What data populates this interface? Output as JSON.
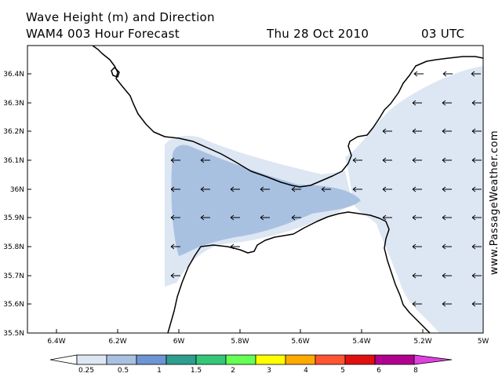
{
  "header": {
    "title": "Wave Height (m) and Direction",
    "model_line": "WAM4 003 Hour Forecast",
    "date": "Thu 28 Oct 2010",
    "time": "03 UTC"
  },
  "watermark": "www.PassageWeather.com",
  "map": {
    "x_ticks": [
      "6.4W",
      "6.2W",
      "6W",
      "5.8W",
      "5.6W",
      "5.4W",
      "5.2W",
      "5W"
    ],
    "y_ticks": [
      "36.4N",
      "36.3N",
      "36.2N",
      "36.1N",
      "36N",
      "35.9N",
      "35.8N",
      "35.7N",
      "35.6N",
      "35.5N"
    ],
    "shading_levels": [
      "0.25-0.5 m",
      "0.5-1 m"
    ],
    "arrow_direction": "west"
  },
  "legend": {
    "labels": [
      "0.25",
      "0.5",
      "1",
      "1.5",
      "2",
      "3",
      "4",
      "5",
      "6",
      "8"
    ],
    "colors": [
      "#ffffff",
      "#dde6f3",
      "#a9c1e1",
      "#6d95d3",
      "#2e9e8f",
      "#34c77a",
      "#66ff55",
      "#ffff00",
      "#ffaa00",
      "#ff5533",
      "#e01010",
      "#b0008f",
      "#e040e0"
    ]
  }
}
